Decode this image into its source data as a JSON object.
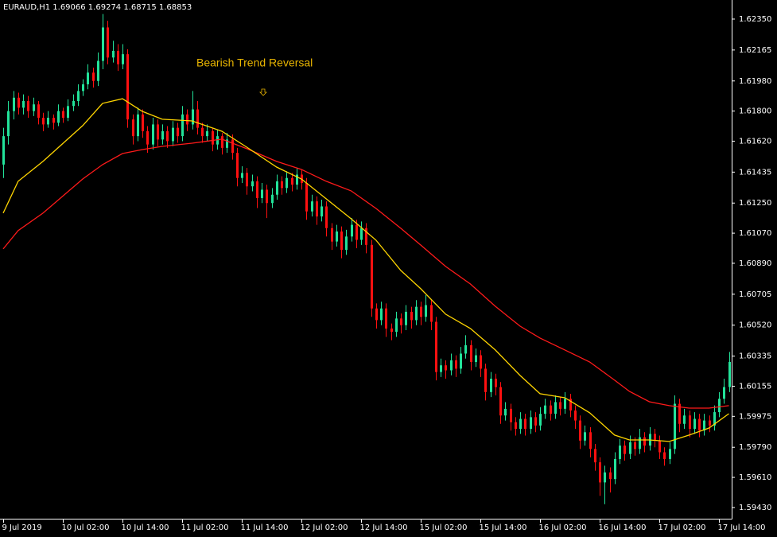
{
  "chart_data": {
    "type": "candlestick",
    "header": "EURAUD,H1  1.69066 1.69274 1.68715 1.68853",
    "annotation": "Bearish Trend Reversal",
    "bull_color": "#22e39a",
    "bear_color": "#ff1010",
    "ylim": [
      1.59363,
      1.62464
    ],
    "xlim": [
      -0.64,
      146.56
    ],
    "yticks": [
      {
        "value": 1.6235,
        "label": "1.62350"
      },
      1.62165,
      {
        "value": 1.6198,
        "label": "1.61980"
      },
      {
        "value": 1.618,
        "label": "1.61800"
      },
      {
        "value": 1.6162,
        "label": "1.61620"
      },
      1.61435,
      {
        "value": 1.6125,
        "label": "1.61250"
      },
      {
        "value": 1.6107,
        "label": "1.61070"
      },
      {
        "value": 1.6089,
        "label": "1.60890"
      },
      1.60705,
      {
        "value": 1.6052,
        "label": "1.60520"
      },
      1.60335,
      1.60155,
      1.59975,
      {
        "value": 1.5979,
        "label": "1.59790"
      },
      {
        "value": 1.5961,
        "label": "1.59610"
      },
      {
        "value": 1.5943,
        "label": "1.59430"
      }
    ],
    "xticks": [
      {
        "value": 0,
        "label": "9 Jul 2019"
      },
      {
        "value": 12,
        "label": "10 Jul 02:00"
      },
      {
        "value": 24,
        "label": "10 Jul 14:00"
      },
      {
        "value": 36,
        "label": "11 Jul 02:00"
      },
      {
        "value": 48,
        "label": "11 Jul 14:00"
      },
      {
        "value": 60,
        "label": "12 Jul 02:00"
      },
      {
        "value": 72,
        "label": "12 Jul 14:00"
      },
      {
        "value": 84,
        "label": "15 Jul 02:00"
      },
      {
        "value": 96,
        "label": "15 Jul 14:00"
      },
      {
        "value": 108,
        "label": "16 Jul 02:00"
      },
      {
        "value": 120,
        "label": "16 Jul 14:00"
      },
      {
        "value": 132,
        "label": "17 Jul 02:00"
      },
      {
        "value": 144,
        "label": "17 Jul 14:00"
      }
    ],
    "ohlc": [
      [
        1.6148,
        1.617,
        1.614,
        1.6165
      ],
      [
        1.6165,
        1.6186,
        1.616,
        1.618
      ],
      [
        1.618,
        1.6192,
        1.6175,
        1.6188
      ],
      [
        1.6188,
        1.6191,
        1.6178,
        1.6182
      ],
      [
        1.6182,
        1.619,
        1.6178,
        1.6186
      ],
      [
        1.6186,
        1.6189,
        1.6176,
        1.618
      ],
      [
        1.618,
        1.6188,
        1.6177,
        1.6184
      ],
      [
        1.6184,
        1.6186,
        1.6172,
        1.6176
      ],
      [
        1.6176,
        1.6179,
        1.6168,
        1.6172
      ],
      [
        1.6172,
        1.618,
        1.617,
        1.6176
      ],
      [
        1.6176,
        1.6178,
        1.6169,
        1.6173
      ],
      [
        1.6173,
        1.6184,
        1.6171,
        1.618
      ],
      [
        1.618,
        1.6182,
        1.6173,
        1.6176
      ],
      [
        1.6176,
        1.6187,
        1.6174,
        1.6183
      ],
      [
        1.6183,
        1.619,
        1.618,
        1.6186
      ],
      [
        1.6186,
        1.6196,
        1.6183,
        1.6192
      ],
      [
        1.6192,
        1.6199,
        1.6189,
        1.6196
      ],
      [
        1.6196,
        1.6208,
        1.6193,
        1.6203
      ],
      [
        1.6203,
        1.6206,
        1.6194,
        1.6198
      ],
      [
        1.6198,
        1.6215,
        1.6195,
        1.621
      ],
      [
        1.621,
        1.6238,
        1.6205,
        1.623
      ],
      [
        1.623,
        1.6234,
        1.6208,
        1.6212
      ],
      [
        1.6212,
        1.6222,
        1.6209,
        1.6216
      ],
      [
        1.6216,
        1.622,
        1.6204,
        1.6208
      ],
      [
        1.6208,
        1.622,
        1.6205,
        1.6214
      ],
      [
        1.6214,
        1.6217,
        1.617,
        1.6175
      ],
      [
        1.6175,
        1.6178,
        1.616,
        1.6165
      ],
      [
        1.6165,
        1.6182,
        1.6162,
        1.6178
      ],
      [
        1.6178,
        1.6181,
        1.6164,
        1.6168
      ],
      [
        1.6168,
        1.6171,
        1.6155,
        1.616
      ],
      [
        1.616,
        1.6176,
        1.6157,
        1.6172
      ],
      [
        1.6172,
        1.6175,
        1.6159,
        1.6163
      ],
      [
        1.6163,
        1.6172,
        1.616,
        1.6168
      ],
      [
        1.6168,
        1.6171,
        1.6158,
        1.6162
      ],
      [
        1.6162,
        1.6174,
        1.6159,
        1.617
      ],
      [
        1.617,
        1.6173,
        1.6161,
        1.6165
      ],
      [
        1.6165,
        1.6183,
        1.6162,
        1.6178
      ],
      [
        1.6178,
        1.6181,
        1.6168,
        1.6172
      ],
      [
        1.6172,
        1.6192,
        1.6169,
        1.6181
      ],
      [
        1.6181,
        1.6186,
        1.6166,
        1.617
      ],
      [
        1.617,
        1.6173,
        1.6161,
        1.6165
      ],
      [
        1.6165,
        1.6172,
        1.6162,
        1.6168
      ],
      [
        1.6168,
        1.617,
        1.6156,
        1.616
      ],
      [
        1.616,
        1.6169,
        1.6157,
        1.6165
      ],
      [
        1.6165,
        1.6167,
        1.6154,
        1.6158
      ],
      [
        1.6158,
        1.6167,
        1.6155,
        1.6163
      ],
      [
        1.6163,
        1.6166,
        1.6151,
        1.6155
      ],
      [
        1.6155,
        1.6158,
        1.6135,
        1.614
      ],
      [
        1.614,
        1.6147,
        1.6137,
        1.6143
      ],
      [
        1.6143,
        1.6146,
        1.613,
        1.6135
      ],
      [
        1.6135,
        1.6142,
        1.6132,
        1.6138
      ],
      [
        1.6138,
        1.6141,
        1.6122,
        1.6128
      ],
      [
        1.6128,
        1.6137,
        1.6125,
        1.6133
      ],
      [
        1.6133,
        1.6136,
        1.6116,
        1.6125
      ],
      [
        1.6125,
        1.6134,
        1.6122,
        1.613
      ],
      [
        1.613,
        1.6142,
        1.6127,
        1.6138
      ],
      [
        1.6138,
        1.6141,
        1.613,
        1.6134
      ],
      [
        1.6134,
        1.6144,
        1.6131,
        1.614
      ],
      [
        1.614,
        1.6143,
        1.6132,
        1.6136
      ],
      [
        1.6136,
        1.6146,
        1.6133,
        1.6142
      ],
      [
        1.6142,
        1.6145,
        1.6133,
        1.6137
      ],
      [
        1.6137,
        1.614,
        1.6115,
        1.612
      ],
      [
        1.612,
        1.613,
        1.6117,
        1.6126
      ],
      [
        1.6126,
        1.6129,
        1.6112,
        1.6117
      ],
      [
        1.6117,
        1.6127,
        1.6114,
        1.6123
      ],
      [
        1.6123,
        1.6126,
        1.6105,
        1.611
      ],
      [
        1.611,
        1.6113,
        1.6097,
        1.6102
      ],
      [
        1.6102,
        1.6112,
        1.6099,
        1.6108
      ],
      [
        1.6108,
        1.6111,
        1.6092,
        1.6097
      ],
      [
        1.6097,
        1.6109,
        1.6094,
        1.6105
      ],
      [
        1.6105,
        1.6116,
        1.6102,
        1.6112
      ],
      [
        1.6112,
        1.6115,
        1.6098,
        1.6103
      ],
      [
        1.6103,
        1.6114,
        1.61,
        1.611
      ],
      [
        1.611,
        1.6113,
        1.6095,
        1.61
      ],
      [
        1.61,
        1.6103,
        1.6057,
        1.6062
      ],
      [
        1.6062,
        1.6065,
        1.605,
        1.6055
      ],
      [
        1.6055,
        1.6066,
        1.6052,
        1.6062
      ],
      [
        1.6062,
        1.6065,
        1.6045,
        1.605
      ],
      [
        1.605,
        1.6053,
        1.6043,
        1.6048
      ],
      [
        1.6048,
        1.606,
        1.6045,
        1.6056
      ],
      [
        1.6056,
        1.6059,
        1.6047,
        1.6052
      ],
      [
        1.6052,
        1.6064,
        1.6049,
        1.606
      ],
      [
        1.606,
        1.6063,
        1.605,
        1.6055
      ],
      [
        1.6055,
        1.6067,
        1.6052,
        1.6063
      ],
      [
        1.6063,
        1.6066,
        1.6052,
        1.6057
      ],
      [
        1.6057,
        1.607,
        1.6054,
        1.6064
      ],
      [
        1.6064,
        1.6067,
        1.6049,
        1.6054
      ],
      [
        1.6054,
        1.6057,
        1.6019,
        1.6024
      ],
      [
        1.6024,
        1.6032,
        1.6021,
        1.6028
      ],
      [
        1.6028,
        1.6031,
        1.602,
        1.6025
      ],
      [
        1.6025,
        1.6035,
        1.6022,
        1.6031
      ],
      [
        1.6031,
        1.6034,
        1.6021,
        1.6026
      ],
      [
        1.6026,
        1.6039,
        1.6023,
        1.6035
      ],
      [
        1.6035,
        1.6046,
        1.6032,
        1.604
      ],
      [
        1.604,
        1.6043,
        1.6025,
        1.603
      ],
      [
        1.603,
        1.6038,
        1.6027,
        1.6034
      ],
      [
        1.6034,
        1.6037,
        1.6021,
        1.6026
      ],
      [
        1.6026,
        1.6029,
        1.6007,
        1.6012
      ],
      [
        1.6012,
        1.6024,
        1.6009,
        1.602
      ],
      [
        1.602,
        1.6023,
        1.601,
        1.6015
      ],
      [
        1.6015,
        1.6018,
        1.5993,
        1.5998
      ],
      [
        1.5998,
        1.6006,
        1.5995,
        1.6002
      ],
      [
        1.6002,
        1.6005,
        1.5989,
        1.5994
      ],
      [
        1.5994,
        1.5997,
        1.5986,
        1.599
      ],
      [
        1.599,
        1.6,
        1.5987,
        1.5996
      ],
      [
        1.5996,
        1.5999,
        1.5986,
        1.599
      ],
      [
        1.599,
        1.6001,
        1.5987,
        1.5997
      ],
      [
        1.5997,
        1.6,
        1.5988,
        1.5992
      ],
      [
        1.5992,
        1.6003,
        1.5989,
        1.5999
      ],
      [
        1.5999,
        1.6008,
        1.5996,
        1.6004
      ],
      [
        1.6004,
        1.6007,
        1.5995,
        1.5999
      ],
      [
        1.5999,
        1.601,
        1.5996,
        1.6006
      ],
      [
        1.6006,
        1.6009,
        1.5998,
        1.6002
      ],
      [
        1.6002,
        1.6012,
        1.5999,
        1.6008
      ],
      [
        1.6008,
        1.6011,
        1.5997,
        1.6001
      ],
      [
        1.6001,
        1.6004,
        1.599,
        1.5995
      ],
      [
        1.5995,
        1.5998,
        1.5978,
        1.5983
      ],
      [
        1.5983,
        1.5992,
        1.598,
        1.5988
      ],
      [
        1.5988,
        1.5991,
        1.5973,
        1.5978
      ],
      [
        1.5978,
        1.5981,
        1.5965,
        1.597
      ],
      [
        1.597,
        1.5973,
        1.595,
        1.5958
      ],
      [
        1.5958,
        1.5968,
        1.5945,
        1.5964
      ],
      [
        1.5964,
        1.5967,
        1.5952,
        1.596
      ],
      [
        1.596,
        1.5976,
        1.5957,
        1.5972
      ],
      [
        1.5972,
        1.5984,
        1.5969,
        1.598
      ],
      [
        1.598,
        1.5983,
        1.5971,
        1.5975
      ],
      [
        1.5975,
        1.5986,
        1.5972,
        1.5982
      ],
      [
        1.5982,
        1.5985,
        1.5974,
        1.5978
      ],
      [
        1.5978,
        1.599,
        1.5975,
        1.5985
      ],
      [
        1.5985,
        1.5988,
        1.5976,
        1.598
      ],
      [
        1.598,
        1.5991,
        1.5977,
        1.5987
      ],
      [
        1.5987,
        1.599,
        1.5979,
        1.5983
      ],
      [
        1.5983,
        1.5986,
        1.5972,
        1.5976
      ],
      [
        1.5976,
        1.5979,
        1.5968,
        1.5972
      ],
      [
        1.5972,
        1.5982,
        1.5969,
        1.5978
      ],
      [
        1.5978,
        1.601,
        1.5975,
        1.6005
      ],
      [
        1.6005,
        1.6008,
        1.5988,
        1.5993
      ],
      [
        1.5993,
        1.6002,
        1.599,
        1.5998
      ],
      [
        1.5998,
        1.6001,
        1.5985,
        1.599
      ],
      [
        1.599,
        1.6,
        1.5987,
        1.5996
      ],
      [
        1.5996,
        1.5999,
        1.5985,
        1.5989
      ],
      [
        1.5989,
        1.5999,
        1.5986,
        1.5995
      ],
      [
        1.5995,
        1.5998,
        1.5988,
        1.5992
      ],
      [
        1.5992,
        1.6004,
        1.5989,
        1.6
      ],
      [
        1.6,
        1.6012,
        1.5997,
        1.6008
      ],
      [
        1.6008,
        1.602,
        1.6005,
        1.6015
      ],
      [
        1.6015,
        1.6036,
        1.6012,
        1.603
      ]
    ],
    "lines": [
      {
        "color": "#ff1a1a",
        "x": [
          0,
          3,
          8,
          16,
          20,
          24,
          28,
          32,
          38,
          44,
          49,
          55,
          60,
          65,
          70,
          75,
          80,
          84,
          89,
          94,
          99,
          104,
          108,
          113,
          118,
          123,
          126,
          130,
          134,
          138,
          142,
          146
        ],
        "values": [
          1.60976,
          1.61085,
          1.6119,
          1.61394,
          1.6148,
          1.61546,
          1.6157,
          1.61589,
          1.61608,
          1.61632,
          1.61575,
          1.61499,
          1.61451,
          1.6138,
          1.61323,
          1.61218,
          1.61099,
          1.60999,
          1.60871,
          1.60766,
          1.60633,
          1.60514,
          1.60443,
          1.60372,
          1.603,
          1.60191,
          1.60124,
          1.60062,
          1.60039,
          1.60024,
          1.60024,
          1.60039
        ]
      },
      {
        "color": "#ffd500",
        "x": [
          0,
          3,
          8,
          16,
          20,
          24,
          28,
          32,
          38,
          44,
          49,
          55,
          60,
          65,
          70,
          75,
          80,
          84,
          89,
          94,
          99,
          104,
          108,
          113,
          118,
          123,
          126,
          130,
          134,
          138,
          142,
          146
        ],
        "values": [
          1.6119,
          1.6138,
          1.61499,
          1.61713,
          1.61846,
          1.61874,
          1.61798,
          1.61751,
          1.61741,
          1.61679,
          1.61584,
          1.61465,
          1.61394,
          1.61275,
          1.61156,
          1.61028,
          1.60847,
          1.60738,
          1.60586,
          1.605,
          1.60372,
          1.60219,
          1.6011,
          1.60086,
          1.59996,
          1.59863,
          1.59834,
          1.59834,
          1.59825,
          1.59863,
          1.59905,
          1.59991
        ]
      }
    ]
  }
}
